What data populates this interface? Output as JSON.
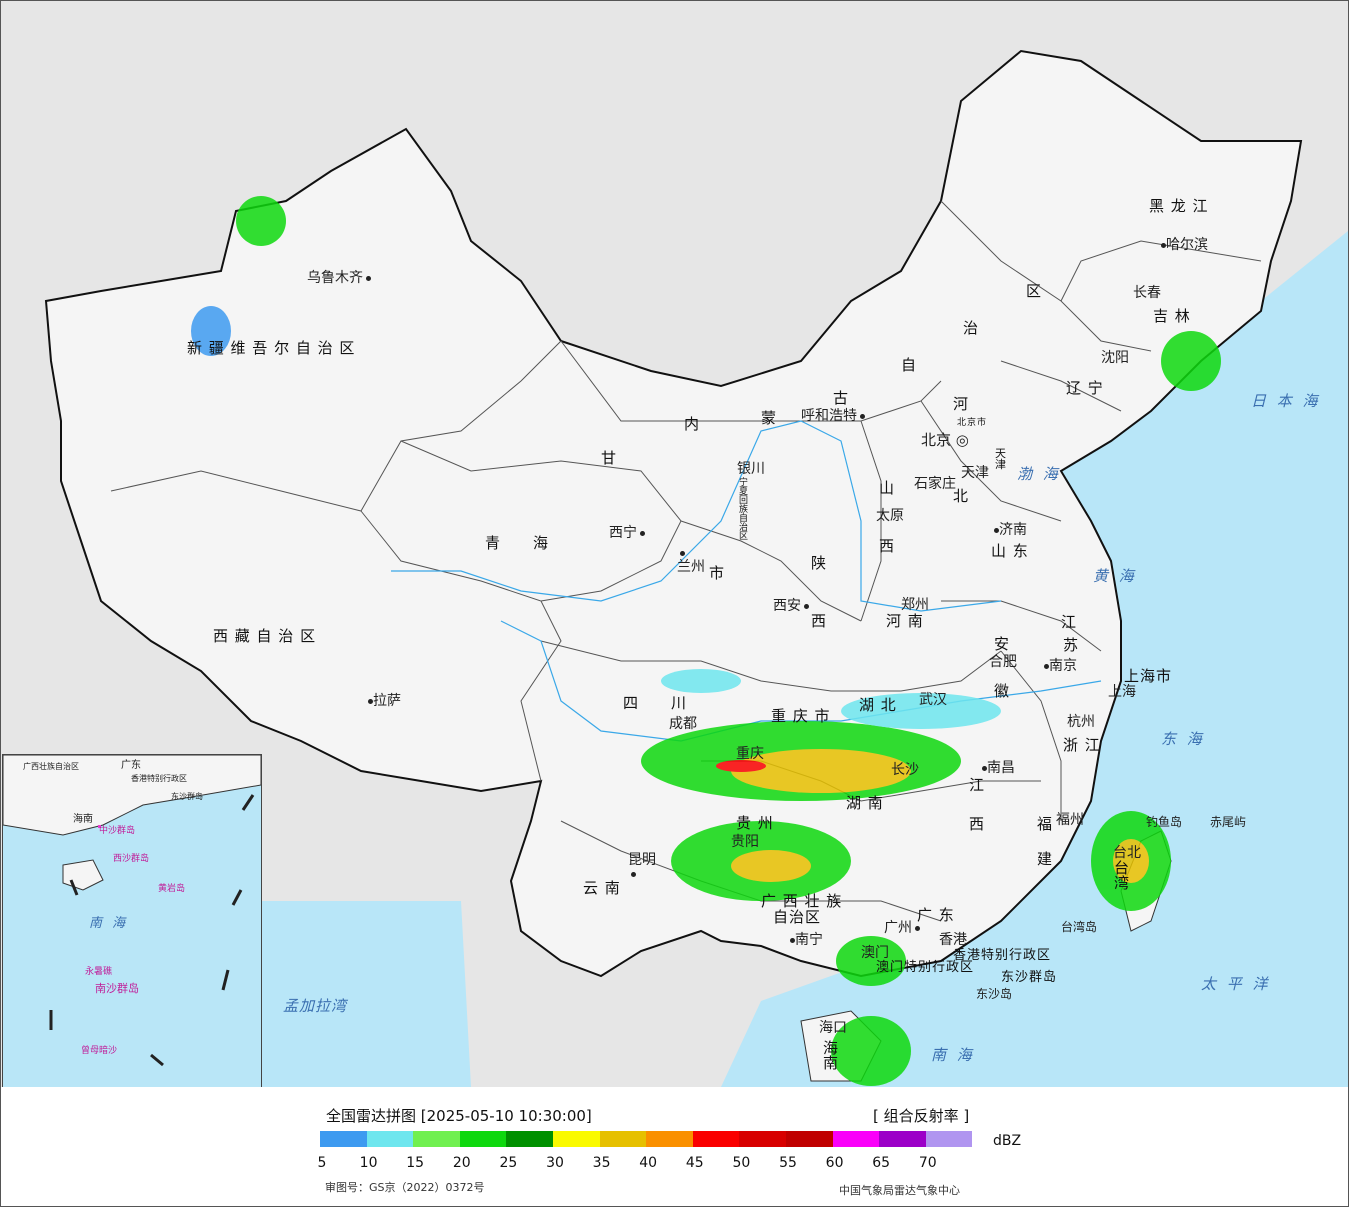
{
  "map": {
    "province_labels": [
      "新 疆 维 吾 尔 自 治 区",
      "西 藏 自 治 区",
      "青　　海",
      "甘",
      "内",
      "蒙",
      "古",
      "自",
      "治",
      "区",
      "黑 龙 江",
      "吉 林",
      "辽 宁",
      "河",
      "北",
      "山",
      "西",
      "陕",
      "西",
      "宁夏回族自治区",
      "四　　川",
      "重 庆 市",
      "湖 北",
      "湖 南",
      "贵 州",
      "云 南",
      "广 西 壮 族",
      "自治区",
      "广 东",
      "江",
      "西",
      "福",
      "建",
      "浙 江",
      "安",
      "徽",
      "江",
      "苏",
      "山 东",
      "河 南",
      "上海市",
      "台 湾",
      "北京市",
      "天津",
      "海 南",
      "香港特别行政区",
      "澳门特别行政区",
      "东沙群岛",
      "市"
    ],
    "city_labels": [
      "乌鲁木齐",
      "拉萨",
      "西宁",
      "兰州",
      "银川",
      "呼和浩特",
      "北京",
      "天津",
      "石家庄",
      "太原",
      "济南",
      "郑州",
      "西安",
      "成都",
      "重庆",
      "武汉",
      "长沙",
      "贵阳",
      "昆明",
      "南宁",
      "广州",
      "澳门",
      "香港",
      "南昌",
      "合肥",
      "南京",
      "上海",
      "杭州",
      "福州",
      "台北",
      "台湾岛",
      "东沙岛",
      "海口",
      "哈尔滨",
      "长春",
      "沈阳",
      "赤尾屿",
      "钓鱼岛"
    ],
    "sea_labels": [
      "日 本 海",
      "渤 海",
      "黄 海",
      "东 海",
      "太 平 洋",
      "南 海",
      "孟加拉湾"
    ],
    "inset_labels": [
      "南 海",
      "中沙群岛",
      "黄岩岛",
      "南沙群岛",
      "永暑礁",
      "曾母暗沙",
      "西沙群岛",
      "海南",
      "广东",
      "广西壮族自治区",
      "香港特别行政区",
      "东沙群岛"
    ]
  },
  "legend": {
    "title": "全国雷达拼图 [2025-05-10 10:30:00]",
    "product": "[ 组合反射率 ]",
    "unit": "dBZ",
    "ticks": [
      "5",
      "10",
      "15",
      "20",
      "25",
      "30",
      "35",
      "40",
      "45",
      "50",
      "55",
      "60",
      "65",
      "70"
    ],
    "colors": [
      "#3d9af0",
      "#6ee6ee",
      "#70f050",
      "#0ed80e",
      "#009000",
      "#fafa00",
      "#e6c000",
      "#fa9000",
      "#fa0000",
      "#d80000",
      "#c00000",
      "#fa00fa",
      "#9c00c8",
      "#b095f0"
    ],
    "approval": "审图号：GS京（2022）0372号",
    "source": "中国气象局雷达气象中心"
  }
}
